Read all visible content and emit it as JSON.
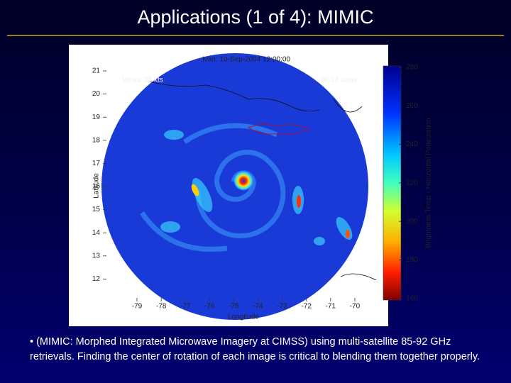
{
  "header": {
    "title": "Applications (1 of 4): MIMIC"
  },
  "figure": {
    "title": "Ivan: 10-Sep-2004 12:00:00",
    "vmax": "Vmax: 25 kts",
    "offset": "00:14 away",
    "ylabel": "Latitude",
    "xlabel": "Longitude",
    "yticks": [
      "21",
      "20",
      "19",
      "18",
      "17",
      "16",
      "15",
      "14",
      "13",
      "12"
    ],
    "xticks": [
      "-79",
      "-78",
      "-77",
      "-76",
      "-75",
      "-74",
      "-73",
      "-72",
      "-71",
      "-70"
    ],
    "colorbar_label": "Brightness Temp - Horizontal Polarization",
    "colorbar_ticks": [
      "280",
      "260",
      "240",
      "220",
      "200",
      "180",
      "160"
    ]
  },
  "caption": "• (MIMIC: Morphed Integrated Microwave Imagery at CIMSS) using multi-satellite 85-92 GHz retrievals. Finding the center of rotation of each image is critical to blending them together properly."
}
